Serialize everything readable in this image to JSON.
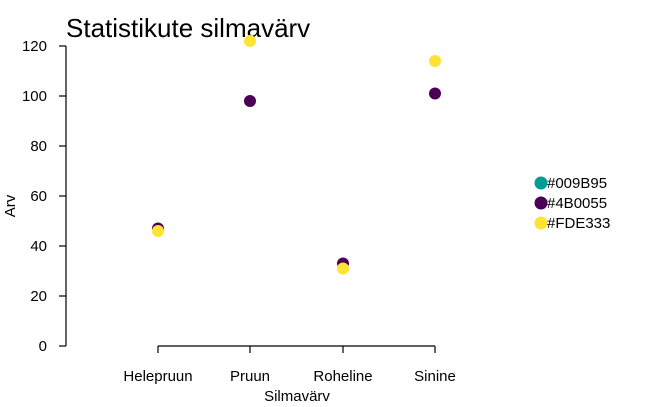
{
  "chart_data": {
    "type": "scatter",
    "title": "Statistikute silmavärv",
    "xlabel": "Silmavärv",
    "ylabel": "Arv",
    "categories": [
      "Helepruun",
      "Pruun",
      "Roheline",
      "Sinine"
    ],
    "ylim": [
      0,
      120
    ],
    "yticks": [
      0,
      20,
      40,
      60,
      80,
      100,
      120
    ],
    "grid": false,
    "legend_position": "right",
    "legend": [
      {
        "label": "#009B95",
        "color": "#009B95"
      },
      {
        "label": "#4B0055",
        "color": "#4B0055"
      },
      {
        "label": "#FDE333",
        "color": "#FDE333"
      }
    ],
    "series": [
      {
        "name": "#009B95",
        "color": "#009B95",
        "values": [
          null,
          null,
          null,
          null
        ]
      },
      {
        "name": "#4B0055",
        "color": "#4B0055",
        "values": [
          47,
          98,
          33,
          101
        ]
      },
      {
        "name": "#FDE333",
        "color": "#FDE333",
        "values": [
          46,
          122,
          31,
          114
        ]
      }
    ]
  }
}
